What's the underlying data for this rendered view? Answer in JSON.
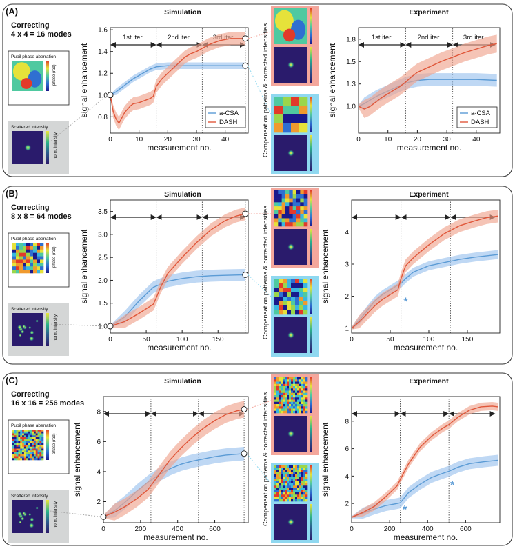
{
  "colors": {
    "csa": "#5b9bd5",
    "csa_band": "#9cc3ee",
    "dash": "#e0573a",
    "dash_band": "#f0a58f",
    "pink_panel": "#f4a79c",
    "blue_panel": "#8fd8f0",
    "gray_panel": "#d4d6d6"
  },
  "labels": {
    "simulation": "Simulation",
    "experiment": "Experiment",
    "xlabel": "measurement no.",
    "ylabel": "signal enhancement",
    "compensation": "Compensation patterns & corrected intensities",
    "pupil": "Pupil phase aberration",
    "scattered": "Scattered intensity",
    "phase_unit": "phase (rad)",
    "norm_int": "norm. intensity",
    "legend_csa": "a-CSA",
    "legend_dash": "DASH",
    "iter1": "1st iter.",
    "iter2": "2nd iter.",
    "iter3": "3rd iter.",
    "star": "*"
  },
  "panels": [
    {
      "letter": "(A)",
      "title_line1": "Correcting",
      "title_line2": "4 x 4 = 16 modes"
    },
    {
      "letter": "(B)",
      "title_line1": "Correcting",
      "title_line2": "8 x 8 = 64 modes"
    },
    {
      "letter": "(C)",
      "title_line1": "Correcting",
      "title_line2": "16 x 16 = 256 modes"
    }
  ],
  "chart_data": [
    {
      "panel": "A",
      "kind": "simulation",
      "type": "line",
      "xlim": [
        0,
        48
      ],
      "ylim": [
        0.65,
        1.62
      ],
      "xticks": [
        0,
        10,
        20,
        30,
        40
      ],
      "yticks": [
        0.8,
        1.0,
        1.2,
        1.4,
        1.6
      ],
      "vlines": [
        16,
        32,
        47
      ],
      "show_iter_labels": true,
      "legend": true,
      "series": [
        {
          "name": "a-CSA",
          "points": [
            [
              0,
              1.0
            ],
            [
              2,
              1.03
            ],
            [
              4,
              1.07
            ],
            [
              6,
              1.11
            ],
            [
              8,
              1.15
            ],
            [
              10,
              1.18
            ],
            [
              12,
              1.21
            ],
            [
              14,
              1.24
            ],
            [
              16,
              1.26
            ],
            [
              20,
              1.27
            ],
            [
              24,
              1.27
            ],
            [
              32,
              1.27
            ],
            [
              40,
              1.27
            ],
            [
              47,
              1.27
            ]
          ],
          "band": 0.03
        },
        {
          "name": "DASH",
          "points": [
            [
              0,
              1.0
            ],
            [
              1,
              0.85
            ],
            [
              2,
              0.78
            ],
            [
              3,
              0.74
            ],
            [
              4,
              0.79
            ],
            [
              5,
              0.84
            ],
            [
              6,
              0.87
            ],
            [
              7,
              0.9
            ],
            [
              8,
              0.92
            ],
            [
              10,
              0.93
            ],
            [
              12,
              0.95
            ],
            [
              14,
              0.97
            ],
            [
              15,
              0.99
            ],
            [
              16,
              1.08
            ],
            [
              18,
              1.15
            ],
            [
              20,
              1.2
            ],
            [
              22,
              1.25
            ],
            [
              24,
              1.3
            ],
            [
              26,
              1.35
            ],
            [
              28,
              1.38
            ],
            [
              30,
              1.4
            ],
            [
              32,
              1.43
            ],
            [
              34,
              1.46
            ],
            [
              36,
              1.48
            ],
            [
              38,
              1.5
            ],
            [
              40,
              1.51
            ],
            [
              42,
              1.52
            ],
            [
              44,
              1.52
            ],
            [
              47,
              1.52
            ]
          ],
          "band": 0.06
        }
      ],
      "markers": [
        [
          0,
          1.0
        ],
        [
          47,
          1.52
        ],
        [
          47,
          1.27
        ]
      ]
    },
    {
      "panel": "A",
      "kind": "experiment",
      "type": "line",
      "xlim": [
        0,
        48
      ],
      "ylim": [
        0.7,
        1.88
      ],
      "xticks": [
        0,
        10,
        20,
        30,
        40
      ],
      "yticks": [
        1.0,
        1.25,
        1.5,
        1.75
      ],
      "vlines": [
        16,
        32
      ],
      "show_iter_labels": true,
      "legend": true,
      "series": [
        {
          "name": "a-CSA",
          "points": [
            [
              0,
              1.0
            ],
            [
              2,
              1.03
            ],
            [
              4,
              1.07
            ],
            [
              6,
              1.11
            ],
            [
              8,
              1.14
            ],
            [
              10,
              1.17
            ],
            [
              12,
              1.2
            ],
            [
              14,
              1.23
            ],
            [
              16,
              1.26
            ],
            [
              20,
              1.29
            ],
            [
              24,
              1.3
            ],
            [
              32,
              1.3
            ],
            [
              40,
              1.3
            ],
            [
              47,
              1.29
            ]
          ],
          "band": 0.07
        },
        {
          "name": "DASH",
          "points": [
            [
              0,
              1.0
            ],
            [
              2,
              0.97
            ],
            [
              4,
              1.0
            ],
            [
              6,
              1.05
            ],
            [
              8,
              1.1
            ],
            [
              10,
              1.14
            ],
            [
              12,
              1.18
            ],
            [
              14,
              1.22
            ],
            [
              16,
              1.27
            ],
            [
              18,
              1.33
            ],
            [
              20,
              1.38
            ],
            [
              24,
              1.44
            ],
            [
              28,
              1.5
            ],
            [
              32,
              1.55
            ],
            [
              36,
              1.6
            ],
            [
              40,
              1.64
            ],
            [
              44,
              1.68
            ],
            [
              47,
              1.7
            ]
          ],
          "band": 0.1
        }
      ],
      "markers": []
    },
    {
      "panel": "B",
      "kind": "simulation",
      "type": "line",
      "xlim": [
        0,
        192
      ],
      "ylim": [
        0.85,
        3.75
      ],
      "xticks": [
        0,
        50,
        100,
        150
      ],
      "yticks": [
        1.0,
        1.5,
        2.0,
        2.5,
        3.0,
        3.5
      ],
      "vlines": [
        64,
        128,
        188
      ],
      "show_iter_labels": false,
      "legend": false,
      "series": [
        {
          "name": "a-CSA",
          "points": [
            [
              0,
              1.0
            ],
            [
              20,
              1.2
            ],
            [
              40,
              1.55
            ],
            [
              60,
              1.85
            ],
            [
              80,
              1.98
            ],
            [
              100,
              2.04
            ],
            [
              120,
              2.08
            ],
            [
              140,
              2.1
            ],
            [
              160,
              2.11
            ],
            [
              188,
              2.12
            ]
          ],
          "band": 0.13
        },
        {
          "name": "DASH",
          "points": [
            [
              0,
              1.0
            ],
            [
              20,
              1.1
            ],
            [
              40,
              1.28
            ],
            [
              60,
              1.48
            ],
            [
              64,
              1.62
            ],
            [
              70,
              1.85
            ],
            [
              80,
              2.15
            ],
            [
              100,
              2.5
            ],
            [
              120,
              2.82
            ],
            [
              140,
              3.1
            ],
            [
              160,
              3.3
            ],
            [
              175,
              3.4
            ],
            [
              188,
              3.45
            ]
          ],
          "band": 0.14
        }
      ],
      "markers": [
        [
          0,
          1.0
        ],
        [
          188,
          3.45
        ],
        [
          188,
          2.12
        ]
      ]
    },
    {
      "panel": "B",
      "kind": "experiment",
      "type": "line",
      "xlim": [
        0,
        192
      ],
      "ylim": [
        0.85,
        5.0
      ],
      "xticks": [
        0,
        50,
        100,
        150
      ],
      "yticks": [
        1,
        2,
        3,
        4
      ],
      "vlines": [
        64,
        128
      ],
      "show_iter_labels": false,
      "legend": false,
      "series": [
        {
          "name": "a-CSA",
          "points": [
            [
              0,
              1.0
            ],
            [
              10,
              1.25
            ],
            [
              20,
              1.55
            ],
            [
              30,
              1.85
            ],
            [
              40,
              2.05
            ],
            [
              50,
              2.2
            ],
            [
              60,
              2.35
            ],
            [
              64,
              2.4
            ],
            [
              70,
              2.55
            ],
            [
              80,
              2.75
            ],
            [
              100,
              2.95
            ],
            [
              120,
              3.05
            ],
            [
              140,
              3.15
            ],
            [
              160,
              3.22
            ],
            [
              190,
              3.3
            ]
          ],
          "band": 0.14
        },
        {
          "name": "DASH",
          "points": [
            [
              0,
              1.0
            ],
            [
              10,
              1.2
            ],
            [
              20,
              1.45
            ],
            [
              30,
              1.7
            ],
            [
              40,
              1.9
            ],
            [
              50,
              2.05
            ],
            [
              60,
              2.2
            ],
            [
              64,
              2.55
            ],
            [
              70,
              2.95
            ],
            [
              80,
              3.2
            ],
            [
              100,
              3.6
            ],
            [
              120,
              3.95
            ],
            [
              128,
              4.05
            ],
            [
              140,
              4.2
            ],
            [
              160,
              4.35
            ],
            [
              175,
              4.45
            ],
            [
              190,
              4.5
            ]
          ],
          "band": 0.2
        }
      ],
      "markers": [],
      "stars": [
        [
          70,
          1.85
        ]
      ]
    },
    {
      "panel": "C",
      "kind": "simulation",
      "type": "line",
      "xlim": [
        0,
        780
      ],
      "ylim": [
        0.6,
        9.0
      ],
      "xticks": [
        0,
        200,
        400,
        600
      ],
      "yticks": [
        2,
        4,
        6,
        8
      ],
      "vlines": [
        256,
        512,
        758
      ],
      "show_iter_labels": false,
      "legend": false,
      "series": [
        {
          "name": "a-CSA",
          "points": [
            [
              0,
              1.0
            ],
            [
              60,
              1.4
            ],
            [
              120,
              2.0
            ],
            [
              180,
              2.7
            ],
            [
              240,
              3.3
            ],
            [
              300,
              3.8
            ],
            [
              360,
              4.2
            ],
            [
              420,
              4.5
            ],
            [
              480,
              4.7
            ],
            [
              540,
              4.85
            ],
            [
              600,
              5.0
            ],
            [
              660,
              5.1
            ],
            [
              758,
              5.2
            ]
          ],
          "band": 0.45
        },
        {
          "name": "DASH",
          "points": [
            [
              0,
              1.0
            ],
            [
              60,
              1.3
            ],
            [
              120,
              1.7
            ],
            [
              180,
              2.2
            ],
            [
              240,
              2.8
            ],
            [
              300,
              3.8
            ],
            [
              360,
              4.8
            ],
            [
              420,
              5.6
            ],
            [
              480,
              6.3
            ],
            [
              540,
              6.9
            ],
            [
              600,
              7.4
            ],
            [
              660,
              7.8
            ],
            [
              720,
              8.05
            ],
            [
              758,
              8.15
            ]
          ],
          "band": 0.55
        }
      ],
      "markers": [
        [
          0,
          1.0
        ],
        [
          758,
          8.15
        ],
        [
          758,
          5.2
        ]
      ]
    },
    {
      "panel": "C",
      "kind": "experiment",
      "type": "line",
      "xlim": [
        0,
        780
      ],
      "ylim": [
        0.6,
        9.8
      ],
      "xticks": [
        0,
        200,
        400,
        600
      ],
      "yticks": [
        2,
        4,
        6,
        8
      ],
      "vlines": [
        256,
        512
      ],
      "show_iter_labels": false,
      "legend": false,
      "series": [
        {
          "name": "a-CSA",
          "points": [
            [
              0,
              1.0
            ],
            [
              60,
              1.3
            ],
            [
              120,
              1.6
            ],
            [
              180,
              1.85
            ],
            [
              240,
              2.0
            ],
            [
              256,
              2.05
            ],
            [
              300,
              2.8
            ],
            [
              360,
              3.4
            ],
            [
              420,
              3.9
            ],
            [
              480,
              4.2
            ],
            [
              512,
              4.35
            ],
            [
              560,
              4.65
            ],
            [
              620,
              4.9
            ],
            [
              700,
              5.05
            ],
            [
              770,
              5.15
            ]
          ],
          "band": 0.4
        },
        {
          "name": "DASH",
          "points": [
            [
              0,
              1.0
            ],
            [
              60,
              1.35
            ],
            [
              120,
              1.8
            ],
            [
              180,
              2.5
            ],
            [
              240,
              3.3
            ],
            [
              256,
              3.75
            ],
            [
              300,
              4.9
            ],
            [
              360,
              6.1
            ],
            [
              420,
              6.9
            ],
            [
              480,
              7.5
            ],
            [
              512,
              7.75
            ],
            [
              560,
              8.3
            ],
            [
              620,
              8.8
            ],
            [
              680,
              9.05
            ],
            [
              740,
              9.1
            ],
            [
              770,
              9.05
            ]
          ],
          "band": 0.3
        }
      ],
      "markers": [],
      "stars": [
        [
          280,
          1.6
        ],
        [
          530,
          3.4
        ]
      ]
    }
  ]
}
